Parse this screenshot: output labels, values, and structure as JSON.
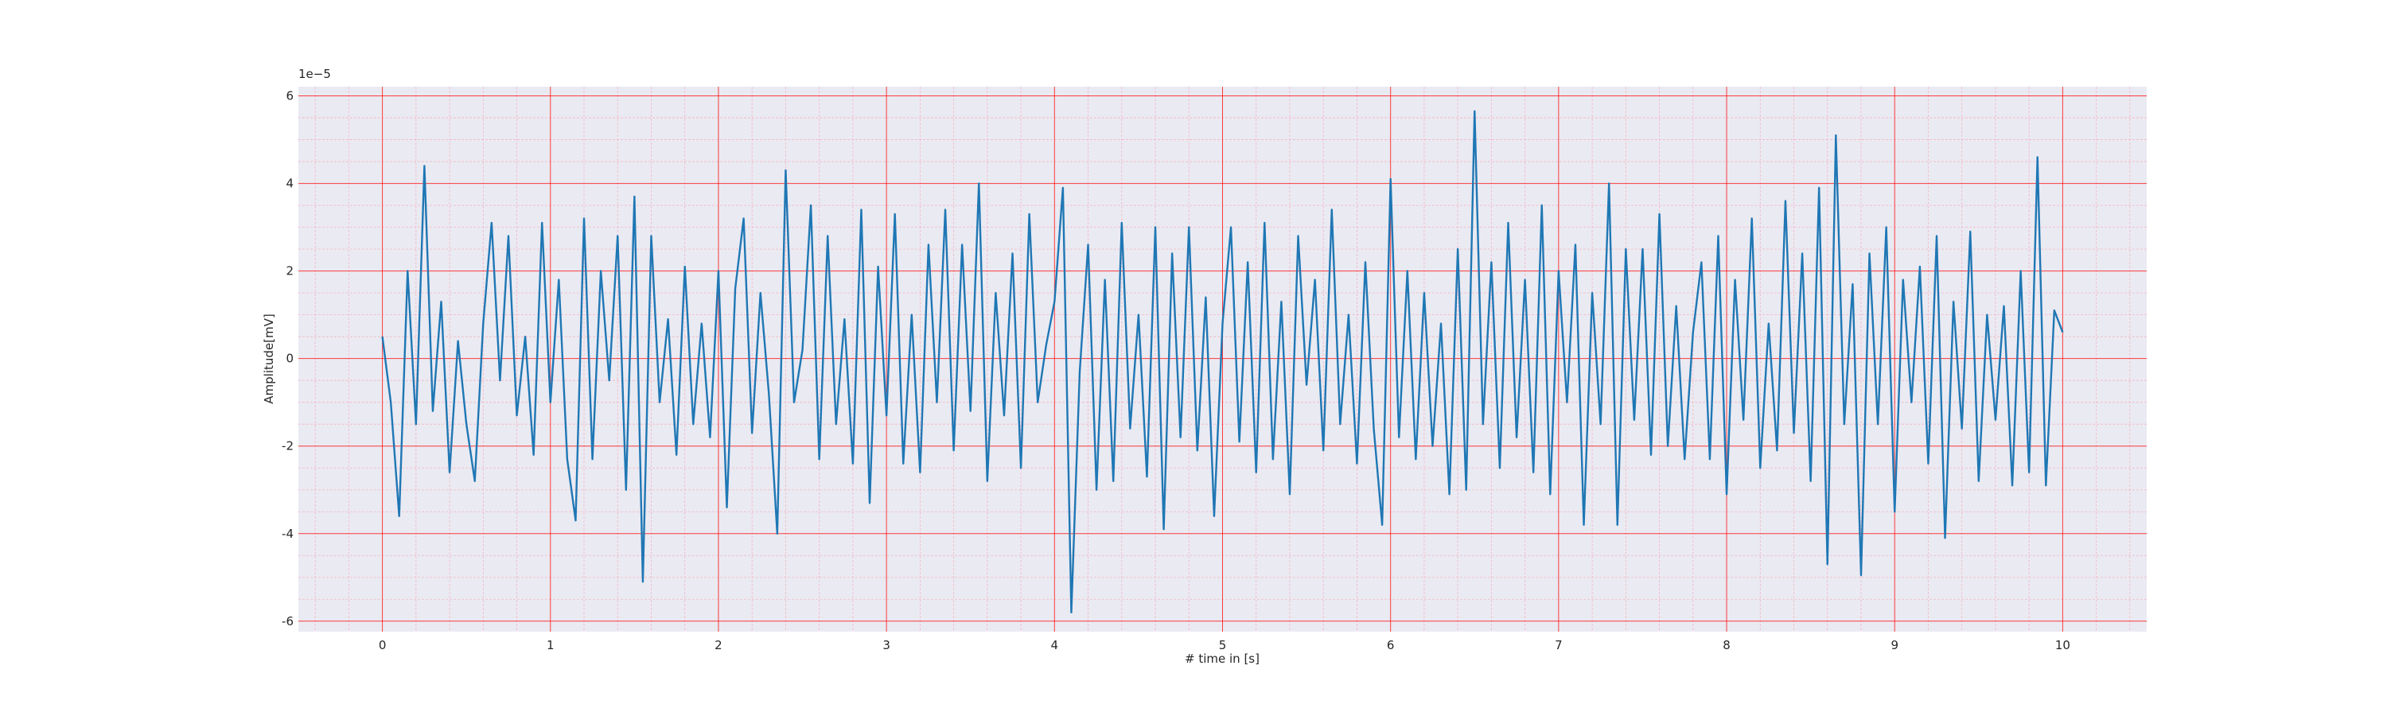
{
  "chart_data": {
    "type": "line",
    "x_label": "# time in [s]",
    "y_label": "Amplitude[mV]",
    "y_offset_text": "1e−5",
    "color": "#1f77b4",
    "grid": true,
    "minor_grid": true,
    "xlim": [
      -0.5,
      10.5
    ],
    "ylim": [
      -6.24,
      6.21
    ],
    "xticks": [
      0,
      1,
      2,
      3,
      4,
      5,
      6,
      7,
      8,
      9,
      10
    ],
    "yticks": [
      -6,
      -4,
      -2,
      0,
      2,
      4,
      6
    ],
    "x": [
      0,
      0.05,
      0.1,
      0.15,
      0.2,
      0.25,
      0.3,
      0.35,
      0.4,
      0.45,
      0.5,
      0.55,
      0.6,
      0.65,
      0.7,
      0.75,
      0.8,
      0.85,
      0.9,
      0.95,
      1,
      1.05,
      1.1,
      1.15,
      1.2,
      1.25,
      1.3,
      1.35,
      1.4,
      1.45,
      1.5,
      1.55,
      1.6,
      1.65,
      1.7,
      1.75,
      1.8,
      1.85,
      1.9,
      1.95,
      2,
      2.05,
      2.1,
      2.15,
      2.2,
      2.25,
      2.3,
      2.35,
      2.4,
      2.45,
      2.5,
      2.55,
      2.6,
      2.65,
      2.7,
      2.75,
      2.8,
      2.85,
      2.9,
      2.95,
      3,
      3.05,
      3.1,
      3.15,
      3.2,
      3.25,
      3.3,
      3.35,
      3.4,
      3.45,
      3.5,
      3.55,
      3.6,
      3.65,
      3.7,
      3.75,
      3.8,
      3.85,
      3.9,
      3.95,
      4,
      4.05,
      4.1,
      4.15,
      4.2,
      4.25,
      4.3,
      4.35,
      4.4,
      4.45,
      4.5,
      4.55,
      4.6,
      4.65,
      4.7,
      4.75,
      4.8,
      4.85,
      4.9,
      4.95,
      5,
      5.05,
      5.1,
      5.15,
      5.2,
      5.25,
      5.3,
      5.35,
      5.4,
      5.45,
      5.5,
      5.55,
      5.6,
      5.65,
      5.7,
      5.75,
      5.8,
      5.85,
      5.9,
      5.95,
      6,
      6.05,
      6.1,
      6.15,
      6.2,
      6.25,
      6.3,
      6.35,
      6.4,
      6.45,
      6.5,
      6.55,
      6.6,
      6.65,
      6.7,
      6.75,
      6.8,
      6.85,
      6.9,
      6.95,
      7,
      7.05,
      7.1,
      7.15,
      7.2,
      7.25,
      7.3,
      7.35,
      7.4,
      7.45,
      7.5,
      7.55,
      7.6,
      7.65,
      7.7,
      7.75,
      7.8,
      7.85,
      7.9,
      7.95,
      8,
      8.05,
      8.1,
      8.15,
      8.2,
      8.25,
      8.3,
      8.35,
      8.4,
      8.45,
      8.5,
      8.55,
      8.6,
      8.65,
      8.7,
      8.75,
      8.8,
      8.85,
      8.9,
      8.95,
      9,
      9.05,
      9.1,
      9.15,
      9.2,
      9.25,
      9.3,
      9.35,
      9.4,
      9.45,
      9.5,
      9.55,
      9.6,
      9.65,
      9.7,
      9.75,
      9.8,
      9.85,
      9.9,
      9.95,
      10
    ],
    "values": [
      0.5,
      -1.0,
      -3.6,
      2.0,
      -1.5,
      4.4,
      -1.2,
      1.3,
      -2.6,
      0.4,
      -1.5,
      -2.8,
      0.8,
      3.1,
      -0.5,
      2.8,
      -1.3,
      0.5,
      -2.2,
      3.1,
      -1.0,
      1.8,
      -2.3,
      -3.7,
      3.2,
      -2.3,
      2.0,
      -0.5,
      2.8,
      -3.0,
      3.7,
      -5.1,
      2.8,
      -1.0,
      0.9,
      -2.2,
      2.1,
      -1.5,
      0.8,
      -1.8,
      2.0,
      -3.4,
      1.6,
      3.2,
      -1.7,
      1.5,
      -0.8,
      -4.0,
      4.3,
      -1.0,
      0.2,
      3.5,
      -2.3,
      2.8,
      -1.5,
      0.9,
      -2.4,
      3.4,
      -3.3,
      2.1,
      -1.3,
      3.3,
      -2.4,
      1.0,
      -2.6,
      2.6,
      -1.0,
      3.4,
      -2.1,
      2.6,
      -1.2,
      4.0,
      -2.8,
      1.5,
      -1.3,
      2.4,
      -2.5,
      3.3,
      -1.0,
      0.3,
      1.3,
      3.9,
      -5.8,
      -0.3,
      2.6,
      -3.0,
      1.8,
      -2.8,
      3.1,
      -1.6,
      1.0,
      -2.7,
      3.0,
      -3.9,
      2.4,
      -1.8,
      3.0,
      -2.1,
      1.4,
      -3.6,
      0.8,
      3.0,
      -1.9,
      2.2,
      -2.6,
      3.1,
      -2.3,
      1.3,
      -3.1,
      2.8,
      -0.6,
      1.8,
      -2.1,
      3.4,
      -1.5,
      1.0,
      -2.4,
      2.2,
      -1.6,
      -3.8,
      4.1,
      -1.8,
      2.0,
      -2.3,
      1.5,
      -2.0,
      0.8,
      -3.1,
      2.5,
      -3.0,
      5.65,
      -1.5,
      2.2,
      -2.5,
      3.1,
      -1.8,
      1.8,
      -2.6,
      3.5,
      -3.1,
      2.0,
      -1.0,
      2.6,
      -3.8,
      1.5,
      -1.5,
      4.0,
      -3.8,
      2.5,
      -1.4,
      2.5,
      -2.2,
      3.3,
      -2.0,
      1.2,
      -2.3,
      0.6,
      2.2,
      -2.3,
      2.8,
      -3.1,
      1.8,
      -1.4,
      3.2,
      -2.5,
      0.8,
      -2.1,
      3.6,
      -1.7,
      2.4,
      -2.8,
      3.9,
      -4.7,
      5.1,
      -1.5,
      1.7,
      -4.95,
      2.4,
      -1.5,
      3.0,
      -3.5,
      1.8,
      -1.0,
      2.1,
      -2.4,
      2.8,
      -4.1,
      1.3,
      -1.6,
      2.9,
      -2.8,
      1.0,
      -1.4,
      1.2,
      -2.9,
      2.0,
      -2.6,
      4.6,
      -2.9,
      1.1,
      0.6
    ]
  }
}
